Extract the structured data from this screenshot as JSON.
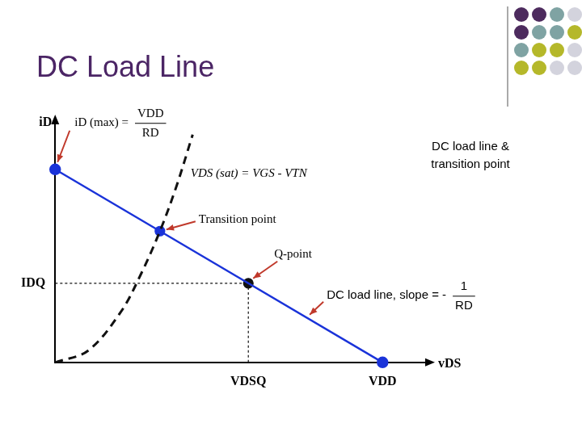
{
  "chart_data": {
    "type": "line",
    "title": "DC Load Line",
    "x_label": "vDS",
    "y_label": "iD",
    "xlim": [
      0,
      11.4
    ],
    "ylim": [
      0,
      12.5
    ],
    "xticks": [
      {
        "value": 5.9,
        "label": "VDSQ"
      },
      {
        "value": 10,
        "label": "VDD"
      }
    ],
    "yticks": [
      {
        "value": 4.1,
        "label": "IDQ"
      }
    ],
    "grid": false,
    "series": [
      {
        "color": "#1a33d9",
        "x": [
          0,
          10
        ],
        "values": [
          10,
          0
        ],
        "marker": "circle",
        "line_style": "solid"
      },
      {
        "color": "#111111",
        "x": [
          0,
          1,
          2,
          2.6,
          3.2,
          3.7,
          4.2
        ],
        "values": [
          0,
          0.6,
          2.6,
          4.5,
          6.8,
          9.1,
          11.8
        ],
        "marker": "none",
        "line_style": "dashed"
      },
      {
        "color": "#1a33d9",
        "x": [
          3.2
        ],
        "values": [
          6.8
        ],
        "marker": "circle",
        "line_style": "none"
      },
      {
        "color": "#111111",
        "x": [
          5.9
        ],
        "values": [
          4.1
        ],
        "marker": "circle",
        "line_style": "none"
      },
      {
        "color": "#111111",
        "x": [
          0,
          5.9
        ],
        "values": [
          4.1,
          4.1
        ],
        "marker": "none",
        "line_style": "dotted"
      },
      {
        "color": "#111111",
        "x": [
          5.9,
          5.9
        ],
        "values": [
          0,
          4.1
        ],
        "marker": "none",
        "line_style": "dotted"
      }
    ],
    "annotations": [
      {
        "text": "iD (max) =",
        "numerator": "VDD",
        "denominator": "RD"
      },
      {
        "text": "DC load line & transition point"
      },
      {
        "text": "VDS (sat) = VGS - VTN"
      },
      {
        "text": "Transition point"
      },
      {
        "text": "Q-point"
      },
      {
        "text": "DC load line, slope = -",
        "numerator": "1",
        "denominator": "RD"
      }
    ]
  }
}
